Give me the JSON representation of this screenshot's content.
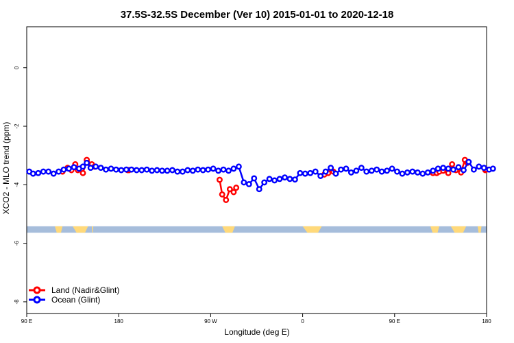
{
  "chart_data": {
    "type": "line",
    "title": "37.5S-32.5S December (Ver 10)   2015-01-01 to 2020-12-18",
    "xlabel": "Longitude (deg E)",
    "ylabel": "XCO2 - MLO trend (ppm)",
    "xlim": [
      90,
      450
    ],
    "ylim": [
      -8.4,
      1.4
    ],
    "x_ticks": [
      {
        "value": 90,
        "label": "90 E"
      },
      {
        "value": 162,
        "label": "180"
      },
      {
        "value": 234,
        "label": "90 W"
      },
      {
        "value": 306,
        "label": "0"
      },
      {
        "value": 378,
        "label": "90 E"
      },
      {
        "value": 450,
        "label": "180"
      }
    ],
    "y_ticks": [
      {
        "value": 0,
        "label": "0"
      },
      {
        "value": -2,
        "label": "-2"
      },
      {
        "value": -4,
        "label": "-4"
      },
      {
        "value": -6,
        "label": "-6"
      },
      {
        "value": -8,
        "label": "-8"
      }
    ],
    "legend_position": "bottom-left",
    "map_strip": {
      "ocean_color": "#a6bddb",
      "land_color": "#ffd97a",
      "y_range": [
        -5.64,
        -5.42
      ],
      "land_x": [
        [
          112,
          118
        ],
        [
          126,
          138
        ],
        [
          141,
          142
        ],
        [
          243,
          253
        ],
        [
          306,
          321
        ],
        [
          406,
          413
        ],
        [
          422,
          434
        ],
        [
          443,
          446
        ]
      ]
    },
    "series": [
      {
        "name": "Land (Nadir&Glint)",
        "color": "#ff0000",
        "segments": [
          [
            [
              118,
              -3.55
            ],
            [
              122,
              -3.42
            ],
            [
              125,
              -3.5
            ],
            [
              128,
              -3.3
            ],
            [
              130,
              -3.5
            ],
            [
              134,
              -3.6
            ],
            [
              137,
              -3.15
            ],
            [
              141,
              -3.3
            ],
            [
              143,
              -3.38
            ]
          ],
          [
            [
              169,
              -3.5
            ],
            [
              170,
              -3.5
            ]
          ],
          [
            [
              241,
              -3.83
            ],
            [
              243,
              -4.33
            ],
            [
              246,
              -4.52
            ],
            [
              249,
              -4.15
            ],
            [
              252,
              -4.25
            ],
            [
              254,
              -4.1
            ]
          ],
          [
            [
              323,
              -3.65
            ],
            [
              326,
              -3.6
            ],
            [
              330,
              -3.55
            ]
          ],
          [
            [
              408,
              -3.6
            ],
            [
              411,
              -3.6
            ],
            [
              413,
              -3.55
            ]
          ],
          [
            [
              416,
              -3.52
            ],
            [
              420,
              -3.6
            ],
            [
              423,
              -3.3
            ],
            [
              426,
              -3.5
            ],
            [
              430,
              -3.58
            ],
            [
              433,
              -3.15
            ],
            [
              435,
              -3.25
            ]
          ],
          [
            [
              449,
              -3.5
            ],
            [
              450,
              -3.48
            ]
          ]
        ]
      },
      {
        "name": "Ocean (Glint)",
        "color": "#0000ff",
        "segments": [
          [
            [
              92,
              -3.55
            ],
            [
              95,
              -3.62
            ],
            [
              99,
              -3.6
            ],
            [
              103,
              -3.55
            ],
            [
              107,
              -3.55
            ],
            [
              111,
              -3.62
            ],
            [
              115,
              -3.55
            ],
            [
              119,
              -3.48
            ],
            [
              123,
              -3.45
            ],
            [
              127,
              -3.4
            ],
            [
              131,
              -3.45
            ],
            [
              134,
              -3.38
            ],
            [
              137,
              -3.25
            ],
            [
              140,
              -3.42
            ],
            [
              144,
              -3.38
            ],
            [
              148,
              -3.42
            ],
            [
              152,
              -3.48
            ],
            [
              156,
              -3.45
            ],
            [
              160,
              -3.48
            ],
            [
              164,
              -3.5
            ],
            [
              168,
              -3.48
            ],
            [
              172,
              -3.48
            ],
            [
              176,
              -3.5
            ],
            [
              180,
              -3.5
            ],
            [
              184,
              -3.48
            ],
            [
              188,
              -3.52
            ],
            [
              192,
              -3.5
            ],
            [
              196,
              -3.52
            ],
            [
              200,
              -3.52
            ],
            [
              204,
              -3.5
            ],
            [
              208,
              -3.55
            ],
            [
              212,
              -3.55
            ],
            [
              216,
              -3.5
            ],
            [
              220,
              -3.52
            ],
            [
              224,
              -3.48
            ],
            [
              228,
              -3.5
            ],
            [
              232,
              -3.48
            ],
            [
              236,
              -3.45
            ],
            [
              240,
              -3.52
            ],
            [
              244,
              -3.48
            ],
            [
              248,
              -3.52
            ],
            [
              252,
              -3.45
            ],
            [
              256,
              -3.38
            ],
            [
              260,
              -3.92
            ],
            [
              264,
              -3.98
            ],
            [
              268,
              -3.78
            ],
            [
              272,
              -4.15
            ],
            [
              276,
              -3.92
            ],
            [
              280,
              -3.8
            ],
            [
              284,
              -3.85
            ],
            [
              288,
              -3.8
            ],
            [
              292,
              -3.75
            ],
            [
              296,
              -3.8
            ],
            [
              300,
              -3.82
            ],
            [
              304,
              -3.6
            ],
            [
              308,
              -3.62
            ],
            [
              312,
              -3.6
            ],
            [
              316,
              -3.55
            ],
            [
              320,
              -3.7
            ],
            [
              324,
              -3.55
            ],
            [
              328,
              -3.42
            ],
            [
              332,
              -3.62
            ],
            [
              336,
              -3.48
            ],
            [
              340,
              -3.45
            ],
            [
              344,
              -3.58
            ],
            [
              348,
              -3.52
            ],
            [
              352,
              -3.42
            ],
            [
              356,
              -3.55
            ],
            [
              360,
              -3.52
            ],
            [
              364,
              -3.48
            ],
            [
              368,
              -3.55
            ],
            [
              372,
              -3.52
            ],
            [
              376,
              -3.45
            ],
            [
              380,
              -3.55
            ],
            [
              384,
              -3.62
            ],
            [
              388,
              -3.58
            ],
            [
              392,
              -3.55
            ],
            [
              396,
              -3.58
            ],
            [
              400,
              -3.62
            ],
            [
              404,
              -3.58
            ],
            [
              408,
              -3.52
            ],
            [
              412,
              -3.45
            ],
            [
              416,
              -3.42
            ],
            [
              420,
              -3.45
            ],
            [
              424,
              -3.48
            ],
            [
              428,
              -3.4
            ],
            [
              432,
              -3.5
            ],
            [
              436,
              -3.22
            ],
            [
              440,
              -3.48
            ],
            [
              444,
              -3.38
            ],
            [
              448,
              -3.42
            ],
            [
              452,
              -3.48
            ],
            [
              455,
              -3.45
            ]
          ]
        ]
      }
    ]
  }
}
